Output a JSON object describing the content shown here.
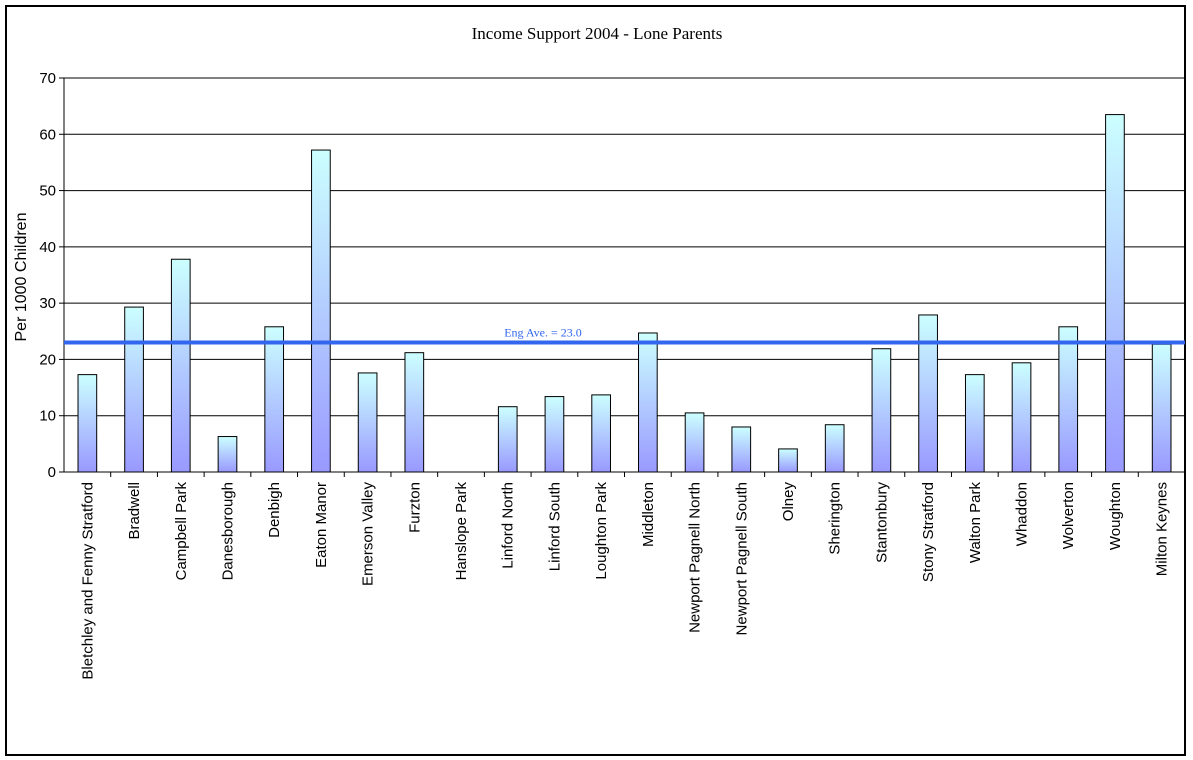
{
  "chart_data": {
    "type": "bar",
    "title": "Income Support 2004 - Lone Parents",
    "xlabel": "",
    "ylabel": "Per 1000 Children",
    "ylim": [
      0,
      70
    ],
    "yticks": [
      0,
      10,
      20,
      30,
      40,
      50,
      60,
      70
    ],
    "grid": true,
    "categories": [
      "Bletchley and Fenny Stratford",
      "Bradwell",
      "Campbell Park",
      "Danesborough",
      "Denbigh",
      "Eaton Manor",
      "Emerson Valley",
      "Furzton",
      "Hanslope Park",
      "Linford North",
      "Linford South",
      "Loughton Park",
      "Middleton",
      "Newport Pagnell North",
      "Newport Pagnell South",
      "Olney",
      "Sherington",
      "Stantonbury",
      "Stony Stratford",
      "Walton Park",
      "Whaddon",
      "Wolverton",
      "Woughton",
      "Milton Keynes"
    ],
    "values": [
      17.3,
      29.3,
      37.8,
      6.3,
      25.8,
      57.2,
      17.6,
      21.2,
      0,
      11.6,
      13.4,
      13.7,
      24.7,
      10.5,
      8.0,
      4.1,
      8.4,
      21.9,
      27.9,
      17.3,
      19.4,
      25.8,
      63.5,
      22.7
    ],
    "reference_line": {
      "label": "Eng Ave. = 23.0",
      "value": 23.0,
      "color": "#3366ee"
    },
    "bar_gradient": {
      "top": "#ccffff",
      "bottom": "#9999ff"
    }
  }
}
